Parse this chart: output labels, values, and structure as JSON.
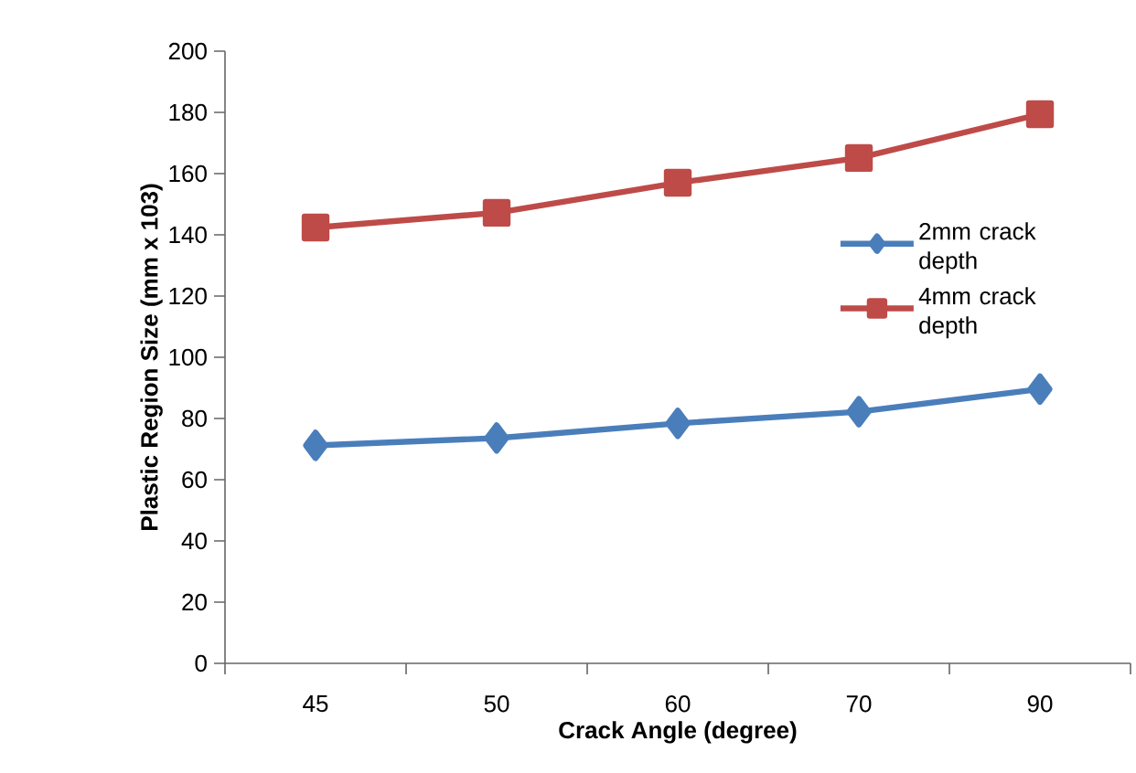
{
  "chart_data": {
    "type": "line",
    "xlabel": "Crack Angle (degree)",
    "ylabel": "Plastic Region Size (mm x 103)",
    "categories": [
      "45",
      "50",
      "60",
      "70",
      "90"
    ],
    "series": [
      {
        "name": "2mm crack depth",
        "color": "#4a7ebb",
        "marker": "diamond",
        "values": [
          71.2,
          73.6,
          78.4,
          82.2,
          89.6
        ]
      },
      {
        "name": "4mm crack depth",
        "color": "#be4b48",
        "marker": "square",
        "values": [
          142.4,
          147.2,
          157.0,
          165.1,
          179.4
        ]
      }
    ],
    "ylim": [
      0,
      200
    ],
    "yticks": [
      0,
      20,
      40,
      60,
      80,
      100,
      120,
      140,
      160,
      180,
      200
    ],
    "grid": false,
    "legend": "right",
    "line_style": "solid"
  }
}
